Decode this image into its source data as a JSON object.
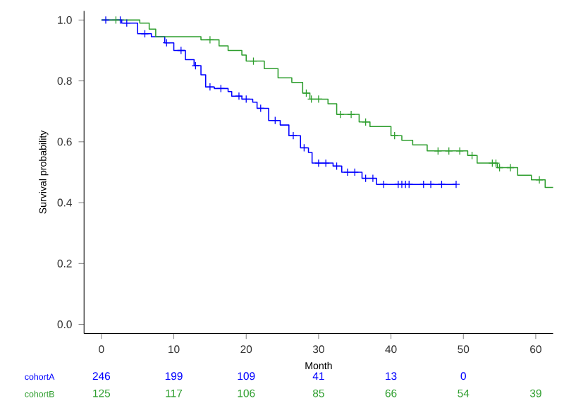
{
  "chart_data": {
    "type": "step",
    "xlabel": "Month",
    "ylabel": "Survival probability",
    "xlim": [
      -2.4,
      62.4
    ],
    "ylim": [
      -0.03,
      1.03
    ],
    "xticks": [
      0,
      10,
      20,
      30,
      40,
      50,
      60
    ],
    "yticks": [
      {
        "value": 0,
        "label": "0.0"
      },
      {
        "value": 0.2,
        "label": "0.2"
      },
      {
        "value": 0.4,
        "label": "0.4"
      },
      {
        "value": 0.6,
        "label": "0.6"
      },
      {
        "value": 0.8,
        "label": "0.8"
      },
      {
        "value": 1,
        "label": "1.0"
      }
    ],
    "grid": false,
    "legend": false,
    "line_style": "solid",
    "series": [
      {
        "name": "cohortA",
        "color": "#0000ff",
        "x": [
          0,
          2.8,
          5,
          6.9,
          8.75,
          10,
          11.6,
          12.8,
          13.75,
          14.4,
          15.6,
          17.5,
          18,
          19.4,
          20.9,
          21.5,
          23.1,
          24.7,
          25.9,
          27.5,
          28.6,
          29.1,
          32,
          33.2,
          36,
          38,
          49
        ],
        "values": [
          1.0,
          0.99,
          0.955,
          0.945,
          0.925,
          0.9,
          0.87,
          0.85,
          0.82,
          0.78,
          0.775,
          0.765,
          0.75,
          0.74,
          0.73,
          0.71,
          0.67,
          0.655,
          0.62,
          0.58,
          0.565,
          0.53,
          0.52,
          0.5,
          0.48,
          0.46,
          0.46
        ]
      },
      {
        "name": "cohortB",
        "color": "#2e9e2e",
        "x": [
          0,
          5.3,
          6.6,
          7.5,
          13.75,
          16.25,
          17.5,
          19.4,
          20,
          22.5,
          24.4,
          26.3,
          27.8,
          28.8,
          31.3,
          32.5,
          35.6,
          37.1,
          40,
          41.5,
          43,
          45,
          50.6,
          51.9,
          54.7,
          57.5,
          59.4,
          61.3,
          62.4
        ],
        "values": [
          1.0,
          0.99,
          0.97,
          0.945,
          0.935,
          0.915,
          0.9,
          0.885,
          0.865,
          0.84,
          0.81,
          0.795,
          0.76,
          0.74,
          0.725,
          0.69,
          0.665,
          0.65,
          0.62,
          0.605,
          0.59,
          0.57,
          0.555,
          0.53,
          0.515,
          0.49,
          0.475,
          0.45,
          0.45
        ]
      },
      {
        "color": "#0000ff",
        "type": "scatter",
        "marker": "cross",
        "x": [
          0.6,
          2.6,
          3.5,
          6,
          9,
          11,
          13,
          15,
          16.5,
          19,
          20,
          22,
          24,
          26.5,
          28,
          30,
          31,
          32.5,
          34,
          35,
          36.5,
          37.5,
          39,
          41,
          41.5,
          42,
          42.5,
          44.5,
          45.5,
          47,
          49
        ],
        "values": [
          1.0,
          1.0,
          0.99,
          0.955,
          0.925,
          0.9,
          0.85,
          0.78,
          0.775,
          0.75,
          0.74,
          0.71,
          0.67,
          0.62,
          0.58,
          0.53,
          0.53,
          0.52,
          0.5,
          0.5,
          0.48,
          0.48,
          0.46,
          0.46,
          0.46,
          0.46,
          0.46,
          0.46,
          0.46,
          0.46,
          0.46
        ]
      },
      {
        "color": "#2e9e2e",
        "type": "scatter",
        "marker": "cross",
        "x": [
          2,
          15,
          21,
          28.3,
          29,
          30,
          33,
          34.5,
          36.5,
          40.5,
          46.5,
          48,
          49.5,
          51.2,
          54,
          54.5,
          55,
          56.5,
          60.5
        ],
        "values": [
          1.0,
          0.935,
          0.865,
          0.76,
          0.74,
          0.74,
          0.69,
          0.69,
          0.665,
          0.62,
          0.57,
          0.57,
          0.57,
          0.555,
          0.53,
          0.53,
          0.515,
          0.515,
          0.475
        ]
      }
    ],
    "annotations": [
      "246",
      "199",
      "109",
      "41",
      "13",
      "0",
      "125",
      "117",
      "106",
      "85",
      "66",
      "54",
      "39"
    ]
  }
}
